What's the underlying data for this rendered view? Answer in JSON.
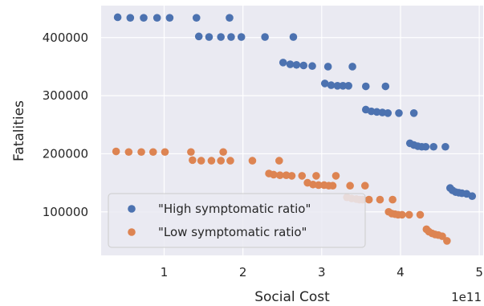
{
  "chart_data": {
    "type": "scatter",
    "xlabel": "Social Cost",
    "ylabel": "Fatalities",
    "x_offset_text": "1e11",
    "xlim": [
      0.2,
      5.05
    ],
    "ylim": [
      25000,
      455000
    ],
    "xticks": [
      1,
      2,
      3,
      4,
      5
    ],
    "xtick_labels": [
      "1",
      "2",
      "3",
      "4",
      "5"
    ],
    "yticks": [
      100000,
      200000,
      300000,
      400000
    ],
    "ytick_labels": [
      "100000",
      "200000",
      "300000",
      "400000"
    ],
    "grid": true,
    "background": "#eaeaf2",
    "legend_position": "lower-left",
    "series": [
      {
        "name": "\"High symptomatic ratio\"",
        "color": "#4c72b0",
        "points": [
          [
            0.41,
            435000
          ],
          [
            0.57,
            434000
          ],
          [
            0.74,
            434000
          ],
          [
            0.91,
            434000
          ],
          [
            1.07,
            434000
          ],
          [
            1.41,
            434000
          ],
          [
            1.83,
            434000
          ],
          [
            1.44,
            402000
          ],
          [
            1.57,
            401000
          ],
          [
            1.72,
            401000
          ],
          [
            1.85,
            401000
          ],
          [
            1.98,
            401000
          ],
          [
            2.28,
            401000
          ],
          [
            2.64,
            401000
          ],
          [
            2.51,
            357000
          ],
          [
            2.6,
            354000
          ],
          [
            2.68,
            353000
          ],
          [
            2.77,
            352000
          ],
          [
            2.88,
            351000
          ],
          [
            3.08,
            350000
          ],
          [
            3.39,
            350000
          ],
          [
            3.04,
            321000
          ],
          [
            3.12,
            318000
          ],
          [
            3.2,
            317000
          ],
          [
            3.27,
            317000
          ],
          [
            3.34,
            317000
          ],
          [
            3.56,
            316000
          ],
          [
            3.81,
            316000
          ],
          [
            3.56,
            276000
          ],
          [
            3.63,
            273000
          ],
          [
            3.7,
            272000
          ],
          [
            3.77,
            271000
          ],
          [
            3.84,
            270000
          ],
          [
            3.98,
            270000
          ],
          [
            4.17,
            270000
          ],
          [
            4.12,
            218000
          ],
          [
            4.17,
            215000
          ],
          [
            4.22,
            213000
          ],
          [
            4.27,
            212000
          ],
          [
            4.32,
            212000
          ],
          [
            4.42,
            212000
          ],
          [
            4.57,
            212000
          ],
          [
            4.63,
            141000
          ],
          [
            4.66,
            137000
          ],
          [
            4.7,
            134000
          ],
          [
            4.74,
            133000
          ],
          [
            4.78,
            132000
          ],
          [
            4.84,
            131000
          ],
          [
            4.91,
            127000
          ]
        ]
      },
      {
        "name": "\"Low symptomatic ratio\"",
        "color": "#dd8452",
        "points": [
          [
            0.39,
            204000
          ],
          [
            0.55,
            203000
          ],
          [
            0.71,
            203000
          ],
          [
            0.86,
            203000
          ],
          [
            1.01,
            203000
          ],
          [
            1.34,
            203000
          ],
          [
            1.75,
            203000
          ],
          [
            1.36,
            189000
          ],
          [
            1.47,
            188000
          ],
          [
            1.6,
            188000
          ],
          [
            1.72,
            188000
          ],
          [
            1.84,
            188000
          ],
          [
            2.12,
            188000
          ],
          [
            2.46,
            188000
          ],
          [
            2.33,
            166000
          ],
          [
            2.39,
            164000
          ],
          [
            2.47,
            163000
          ],
          [
            2.55,
            163000
          ],
          [
            2.62,
            162000
          ],
          [
            2.75,
            162000
          ],
          [
            2.93,
            162000
          ],
          [
            3.18,
            162000
          ],
          [
            2.82,
            150000
          ],
          [
            2.89,
            147000
          ],
          [
            2.96,
            146000
          ],
          [
            3.03,
            146000
          ],
          [
            3.09,
            145000
          ],
          [
            3.14,
            145000
          ],
          [
            3.36,
            145000
          ],
          [
            3.55,
            145000
          ],
          [
            3.32,
            125000
          ],
          [
            3.38,
            123000
          ],
          [
            3.44,
            122000
          ],
          [
            3.48,
            121000
          ],
          [
            3.52,
            121000
          ],
          [
            3.6,
            121000
          ],
          [
            3.74,
            121000
          ],
          [
            3.9,
            121000
          ],
          [
            3.85,
            100000
          ],
          [
            3.89,
            97000
          ],
          [
            3.93,
            96000
          ],
          [
            3.97,
            95000
          ],
          [
            4.02,
            95000
          ],
          [
            4.11,
            95000
          ],
          [
            4.25,
            95000
          ],
          [
            4.33,
            70000
          ],
          [
            4.36,
            66000
          ],
          [
            4.4,
            63000
          ],
          [
            4.44,
            61000
          ],
          [
            4.48,
            60000
          ],
          [
            4.53,
            58000
          ],
          [
            4.59,
            50000
          ]
        ]
      }
    ]
  }
}
